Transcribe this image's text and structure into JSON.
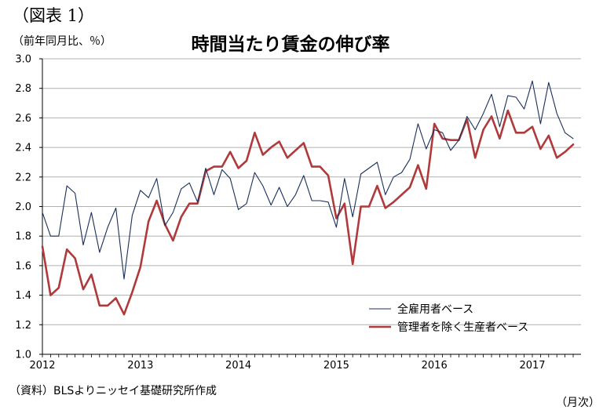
{
  "figure_label": "（図表 1）",
  "unit_label": "（前年同月比、％）",
  "source_note": "（資料）BLSよりニッセイ基礎研究所作成",
  "x_unit_label": "（月次）",
  "colors": {
    "all_employees": "#1a2f5a",
    "excl_managers": "#b0393b",
    "grid": "#b0b0b0"
  },
  "chart_data": {
    "type": "line",
    "title": "時間当たり賃金の伸び率",
    "ylim": [
      1.0,
      3.0
    ],
    "y_ticks": [
      "1.0",
      "1.2",
      "1.4",
      "1.6",
      "1.8",
      "2.0",
      "2.2",
      "2.4",
      "2.6",
      "2.8",
      "3.0"
    ],
    "x_ticks": [
      "2012",
      "2013",
      "2014",
      "2015",
      "2016",
      "2017"
    ],
    "x_start": "2012-01",
    "grid": "horizontal",
    "legend_position": "bottom-right",
    "series": [
      {
        "name": "全雇用者ベース",
        "values": [
          1.96,
          1.8,
          1.8,
          2.14,
          2.09,
          1.74,
          1.96,
          1.69,
          1.86,
          1.99,
          1.51,
          1.94,
          2.11,
          2.06,
          2.19,
          1.87,
          1.96,
          2.12,
          2.16,
          2.03,
          2.26,
          2.08,
          2.25,
          2.19,
          1.98,
          2.02,
          2.23,
          2.14,
          2.01,
          2.13,
          2.0,
          2.08,
          2.21,
          2.04,
          2.04,
          2.03,
          1.86,
          2.19,
          1.93,
          2.22,
          2.26,
          2.3,
          2.08,
          2.2,
          2.23,
          2.32,
          2.56,
          2.39,
          2.52,
          2.5,
          2.38,
          2.45,
          2.61,
          2.52,
          2.63,
          2.76,
          2.54,
          2.75,
          2.74,
          2.66,
          2.85,
          2.56,
          2.84,
          2.63,
          2.5,
          2.46
        ]
      },
      {
        "name": "管理者を除く生産者ベース",
        "values": [
          1.73,
          1.4,
          1.45,
          1.71,
          1.65,
          1.44,
          1.54,
          1.33,
          1.33,
          1.38,
          1.27,
          1.42,
          1.59,
          1.9,
          2.04,
          1.88,
          1.77,
          1.93,
          2.02,
          2.02,
          2.24,
          2.27,
          2.27,
          2.37,
          2.26,
          2.31,
          2.5,
          2.35,
          2.4,
          2.44,
          2.33,
          2.38,
          2.43,
          2.27,
          2.27,
          2.21,
          1.92,
          2.02,
          1.61,
          2.0,
          2.0,
          2.14,
          1.99,
          2.03,
          2.08,
          2.13,
          2.28,
          2.12,
          2.56,
          2.46,
          2.45,
          2.45,
          2.59,
          2.33,
          2.52,
          2.61,
          2.46,
          2.65,
          2.5,
          2.5,
          2.54,
          2.39,
          2.48,
          2.33,
          2.37,
          2.42
        ]
      }
    ]
  }
}
